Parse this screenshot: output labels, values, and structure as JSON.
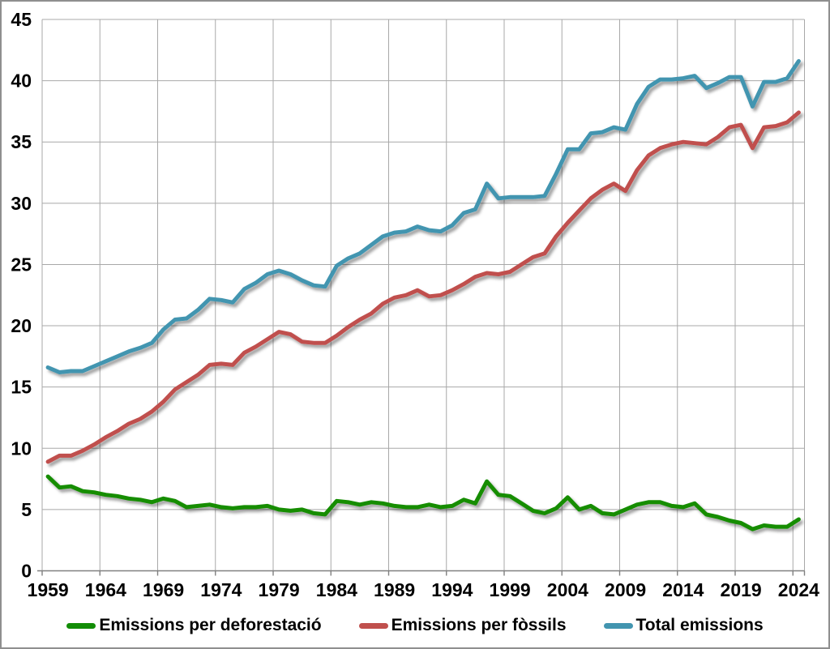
{
  "chart_data": {
    "type": "line",
    "title": "",
    "xlabel": "",
    "ylabel": "",
    "grid": true,
    "legend_position": "bottom",
    "ylim": [
      0,
      45
    ],
    "y_ticks": [
      0,
      5,
      10,
      15,
      20,
      25,
      30,
      35,
      40,
      45
    ],
    "x_tick_labels": [
      "1959",
      "1964",
      "1969",
      "1974",
      "1979",
      "1984",
      "1989",
      "1994",
      "1999",
      "2004",
      "2009",
      "2014",
      "2019",
      "2024"
    ],
    "x": [
      1959,
      1960,
      1961,
      1962,
      1963,
      1964,
      1965,
      1966,
      1967,
      1968,
      1969,
      1970,
      1971,
      1972,
      1973,
      1974,
      1975,
      1976,
      1977,
      1978,
      1979,
      1980,
      1981,
      1982,
      1983,
      1984,
      1985,
      1986,
      1987,
      1988,
      1989,
      1990,
      1991,
      1992,
      1993,
      1994,
      1995,
      1996,
      1997,
      1998,
      1999,
      2000,
      2001,
      2002,
      2003,
      2004,
      2005,
      2006,
      2007,
      2008,
      2009,
      2010,
      2011,
      2012,
      2013,
      2014,
      2015,
      2016,
      2017,
      2018,
      2019,
      2020,
      2021,
      2022,
      2023,
      2024
    ],
    "series": [
      {
        "name": "Emissions per deforestació",
        "color": "#128d06",
        "values": [
          7.7,
          6.8,
          6.9,
          6.5,
          6.4,
          6.2,
          6.1,
          5.9,
          5.8,
          5.6,
          5.9,
          5.7,
          5.2,
          5.3,
          5.4,
          5.2,
          5.1,
          5.2,
          5.2,
          5.3,
          5.0,
          4.9,
          5.0,
          4.7,
          4.6,
          5.7,
          5.6,
          5.4,
          5.6,
          5.5,
          5.3,
          5.2,
          5.2,
          5.4,
          5.2,
          5.3,
          5.8,
          5.5,
          7.3,
          6.2,
          6.1,
          5.5,
          4.9,
          4.7,
          5.1,
          6.0,
          5.0,
          5.3,
          4.7,
          4.6,
          5.0,
          5.4,
          5.6,
          5.6,
          5.3,
          5.2,
          5.5,
          4.6,
          4.4,
          4.1,
          3.9,
          3.4,
          3.7,
          3.6,
          3.6,
          4.2
        ]
      },
      {
        "name": "Emissions per fòssils",
        "color": "#c0504d",
        "values": [
          8.9,
          9.4,
          9.4,
          9.8,
          10.3,
          10.9,
          11.4,
          12.0,
          12.4,
          13.0,
          13.8,
          14.8,
          15.4,
          16.0,
          16.8,
          16.9,
          16.8,
          17.8,
          18.3,
          18.9,
          19.5,
          19.3,
          18.7,
          18.6,
          18.6,
          19.2,
          19.9,
          20.5,
          21.0,
          21.8,
          22.3,
          22.5,
          22.9,
          22.4,
          22.5,
          22.9,
          23.4,
          24.0,
          24.3,
          24.2,
          24.4,
          25.0,
          25.6,
          25.9,
          27.3,
          28.4,
          29.4,
          30.4,
          31.1,
          31.6,
          31.0,
          32.7,
          33.9,
          34.5,
          34.8,
          35.0,
          34.9,
          34.8,
          35.4,
          36.2,
          36.4,
          34.5,
          36.2,
          36.3,
          36.6,
          37.4
        ]
      },
      {
        "name": "Total emissions",
        "color": "#4295b0",
        "values": [
          16.6,
          16.2,
          16.3,
          16.3,
          16.7,
          17.1,
          17.5,
          17.9,
          18.2,
          18.6,
          19.7,
          20.5,
          20.6,
          21.3,
          22.2,
          22.1,
          21.9,
          23.0,
          23.5,
          24.2,
          24.5,
          24.2,
          23.7,
          23.3,
          23.2,
          24.9,
          25.5,
          25.9,
          26.6,
          27.3,
          27.6,
          27.7,
          28.1,
          27.8,
          27.7,
          28.2,
          29.2,
          29.5,
          31.6,
          30.4,
          30.5,
          30.5,
          30.5,
          30.6,
          32.4,
          34.4,
          34.4,
          35.7,
          35.8,
          36.2,
          36.0,
          38.1,
          39.5,
          40.1,
          40.1,
          40.2,
          40.4,
          39.4,
          39.8,
          40.3,
          40.3,
          37.9,
          39.9,
          39.9,
          40.2,
          41.6
        ]
      }
    ]
  },
  "colors": {
    "grid": "#a8a8a8",
    "axis_line": "#808080",
    "tick_text": "#000000",
    "background": "#ffffff",
    "frame_border": "#8f8f8f"
  },
  "legend": {
    "swatch_shape": "rounded-line"
  }
}
